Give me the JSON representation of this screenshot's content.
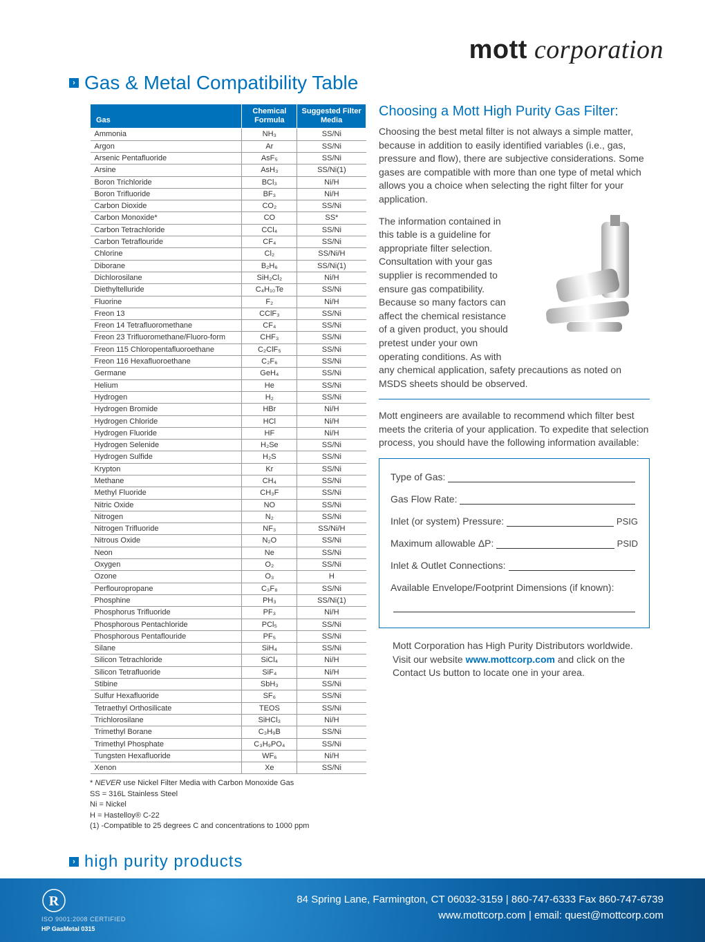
{
  "brand": {
    "part1": "mott",
    "part2": " corporation"
  },
  "page_title": "Gas & Metal Compatibility Table",
  "colors": {
    "brand_blue": "#0072bc",
    "text": "#333333",
    "footer_bg_inner": "#2a8fd1",
    "footer_bg_outer": "#084a80"
  },
  "table": {
    "headers": [
      "Gas",
      "Chemical Formula",
      "Suggested Filter Media"
    ],
    "rows": [
      [
        "Ammonia",
        "NH₃",
        "SS/Ni"
      ],
      [
        "Argon",
        "Ar",
        "SS/Ni"
      ],
      [
        "Arsenic Pentafluoride",
        "AsF₅",
        "SS/Ni"
      ],
      [
        "Arsine",
        "AsH₃",
        "SS/Ni(1)"
      ],
      [
        "Boron Trichloride",
        "BCl₃",
        "Ni/H"
      ],
      [
        "Boron Trifluoride",
        "BF₃",
        "Ni/H"
      ],
      [
        "Carbon Dioxide",
        "CO₂",
        "SS/Ni"
      ],
      [
        "Carbon Monoxide*",
        "CO",
        "SS*"
      ],
      [
        "Carbon Tetrachloride",
        "CCl₄",
        "SS/Ni"
      ],
      [
        "Carbon Tetraflouride",
        "CF₄",
        "SS/Ni"
      ],
      [
        "Chlorine",
        "Cl₂",
        "SS/Ni/H"
      ],
      [
        "Diborane",
        "B₂H₆",
        "SS/Ni(1)"
      ],
      [
        "Dichlorosilane",
        "SiH₂Cl₂",
        "Ni/H"
      ],
      [
        "Diethyltelluride",
        "C₄H₁₀Te",
        "SS/Ni"
      ],
      [
        "Fluorine",
        "F₂",
        "Ni/H"
      ],
      [
        "Freon 13",
        "CClF₃",
        "SS/Ni"
      ],
      [
        "Freon 14 Tetrafluoromethane",
        "CF₄",
        "SS/Ni"
      ],
      [
        "Freon 23 Trifluoromethane/Fluoro-form",
        "CHF₃",
        "SS/Ni"
      ],
      [
        "Freon 115 Chloropentafluoroethane",
        "C₂ClF₅",
        "SS/Ni"
      ],
      [
        "Freon 116 Hexafluoroethane",
        "C₂F₆",
        "SS/Ni"
      ],
      [
        "Germane",
        "GeH₄",
        "SS/Ni"
      ],
      [
        "Helium",
        "He",
        "SS/Ni"
      ],
      [
        "Hydrogen",
        "H₂",
        "SS/Ni"
      ],
      [
        "Hydrogen Bromide",
        "HBr",
        "Ni/H"
      ],
      [
        "Hydrogen Chloride",
        "HCl",
        "Ni/H"
      ],
      [
        "Hydrogen Fluoride",
        "HF",
        "Ni/H"
      ],
      [
        "Hydrogen Selenide",
        "H₂Se",
        "SS/Ni"
      ],
      [
        "Hydrogen Sulfide",
        "H₂S",
        "SS/Ni"
      ],
      [
        "Krypton",
        "Kr",
        "SS/Ni"
      ],
      [
        "Methane",
        "CH₄",
        "SS/Ni"
      ],
      [
        "Methyl Fluoride",
        "CH₃F",
        "SS/Ni"
      ],
      [
        "Nitric Oxide",
        "NO",
        "SS/Ni"
      ],
      [
        "Nitrogen",
        "N₂",
        "SS/Ni"
      ],
      [
        "Nitrogen Trifluoride",
        "NF₃",
        "SS/Ni/H"
      ],
      [
        "Nitrous Oxide",
        "N₂O",
        "SS/Ni"
      ],
      [
        "Neon",
        "Ne",
        "SS/Ni"
      ],
      [
        "Oxygen",
        "O₂",
        "SS/Ni"
      ],
      [
        "Ozone",
        "O₃",
        "H"
      ],
      [
        "Perflouropropane",
        "C₃F₈",
        "SS/Ni"
      ],
      [
        "Phosphine",
        "PH₃",
        "SS/Ni(1)"
      ],
      [
        "Phosphorus Trifluoride",
        "PF₃",
        "Ni/H"
      ],
      [
        "Phosphorous Pentachloride",
        "PCl₅",
        "SS/Ni"
      ],
      [
        "Phosphorous Pentaflouride",
        "PF₅",
        "SS/Ni"
      ],
      [
        "Silane",
        "SiH₄",
        "SS/Ni"
      ],
      [
        "Silicon Tetrachloride",
        "SiCl₄",
        "Ni/H"
      ],
      [
        "Silicon Tetrafluoride",
        "SiF₄",
        "Ni/H"
      ],
      [
        "Stibine",
        "SbH₃",
        "SS/Ni"
      ],
      [
        "Sulfur Hexafluoride",
        "SF₆",
        "SS/Ni"
      ],
      [
        "Tetraethyl Orthosilicate",
        "TEOS",
        "SS/Ni"
      ],
      [
        "Trichlorosilane",
        "SiHCl₃",
        "Ni/H"
      ],
      [
        "Trimethyl Borane",
        "C₃H₉B",
        "SS/Ni"
      ],
      [
        "Trimethyl Phosphate",
        "C₃H₉PO₄",
        "SS/Ni"
      ],
      [
        "Tungsten Hexafluoride",
        "WF₆",
        "Ni/H"
      ],
      [
        "Xenon",
        "Xe",
        "SS/Ni"
      ]
    ]
  },
  "footnotes": [
    "* NEVER use Nickel Filter Media with Carbon Monoxide Gas",
    "SS = 316L Stainless Steel",
    "Ni = Nickel",
    "H = Hastelloy® C-22",
    "(1) -Compatible to 25 degrees C and concentrations to 1000 ppm"
  ],
  "right": {
    "heading": "Choosing a Mott High Purity Gas Filter:",
    "p1": "Choosing the best metal filter is not always a simple matter, because in addition to easily identified variables (i.e., gas, pressure and flow), there are subjective considerations. Some gases are compatible with more than one type of metal which allows you a choice when selecting the right filter for your application.",
    "p2": "The information contained in this table is a guideline for appropriate filter selection. Consultation with your gas supplier is recommended to ensure gas compatibility. Because so many factors can affect the chemical resistance of a given product, you should pretest under your own operating conditions. As with any chemical application, safety precautions as noted on MSDS sheets should be observed.",
    "p3": "Mott engineers are available to recommend which filter best meets the criteria of your application. To expedite that selection process, you should have the following information available:",
    "form": {
      "f1": "Type of Gas:",
      "f2": "Gas Flow Rate:",
      "f3": "Inlet (or system) Pressure:",
      "f3unit": "PSIG",
      "f4": "Maximum allowable ΔP:",
      "f4unit": "PSID",
      "f5": "Inlet & Outlet Connections:",
      "f6": "Available Envelope/Footprint Dimensions (if known):"
    },
    "distributor": "Mott Corporation has High Purity Distributors worldwide. Visit our website ",
    "distributor_link": "www.mottcorp.com",
    "distributor_tail": " and click on the Contact Us button to locate one in your area."
  },
  "hpp": "high purity products",
  "footer": {
    "cert": "ISO 9001:2008 CERTIFIED",
    "doc": "HP GasMetal 0315",
    "line1": "84 Spring Lane, Farmington, CT 06032-3159   |   860-747-6333  Fax 860-747-6739",
    "line2": "www.mottcorp.com   |   email: quest@mottcorp.com"
  }
}
